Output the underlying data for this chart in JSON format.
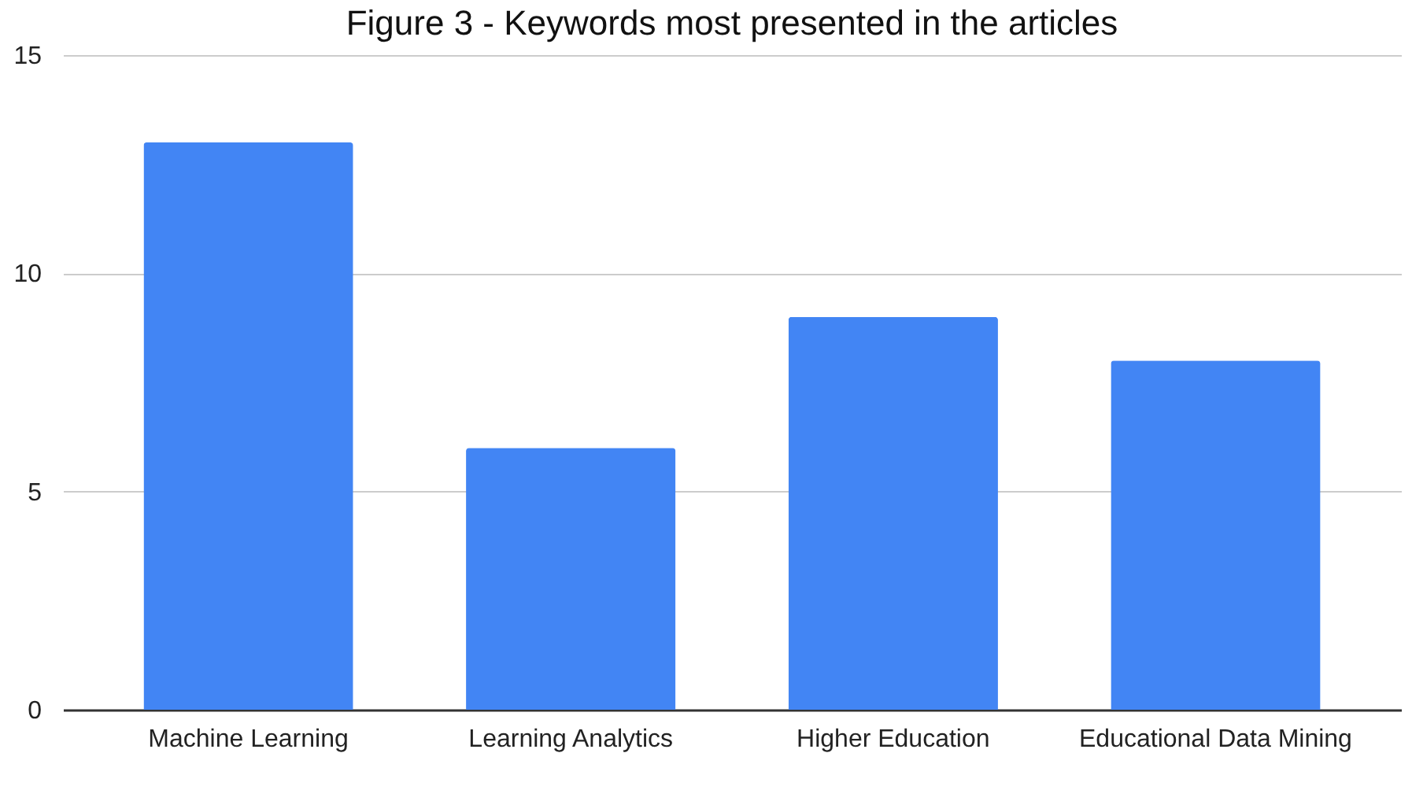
{
  "chart_data": {
    "type": "bar",
    "title": "Figure 3 - Keywords most presented in the articles",
    "categories": [
      "Machine Learning",
      "Learning Analytics",
      "Higher Education",
      "Educational Data Mining"
    ],
    "values": [
      13,
      6,
      9,
      8
    ],
    "color": "#4285f4",
    "ylim": [
      0,
      15
    ],
    "yticks": [
      0,
      5,
      10,
      15
    ],
    "grid": "y"
  }
}
